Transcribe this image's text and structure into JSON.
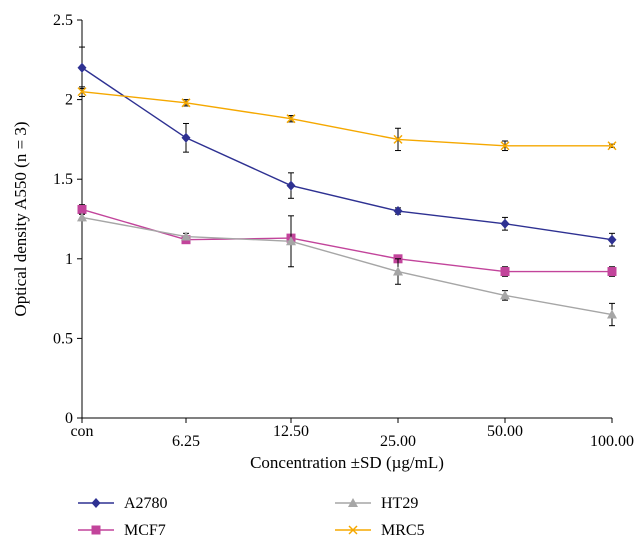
{
  "chart_data": {
    "type": "line",
    "title": "",
    "xlabel": "Concentration ±SD (µg/mL)",
    "ylabel": "Optical density A550 (n = 3)",
    "categories": [
      "con",
      "6.25",
      "12.50",
      "25.00",
      "50.00",
      "100.00"
    ],
    "ylim": [
      0,
      2.5
    ],
    "yticks": [
      0,
      0.5,
      1,
      1.5,
      2,
      2.5
    ],
    "ytick_labels": [
      "0",
      "0.5",
      "1",
      "1.5",
      "2",
      "2.5"
    ],
    "grid": false,
    "legend_position": "bottom",
    "error_bars": true,
    "series": [
      {
        "name": "A2780",
        "color": "#2e3192",
        "marker": "diamond",
        "values": [
          2.2,
          1.76,
          1.46,
          1.3,
          1.22,
          1.12
        ],
        "errors": [
          0.13,
          0.09,
          0.08,
          0.02,
          0.04,
          0.04
        ]
      },
      {
        "name": "MCF7",
        "color": "#c2449b",
        "marker": "square",
        "values": [
          1.31,
          1.12,
          1.13,
          1.0,
          0.92,
          0.92
        ],
        "errors": [
          0.03,
          0.02,
          0.02,
          0.02,
          0.03,
          0.03
        ]
      },
      {
        "name": "HT29",
        "color": "#a6a6a6",
        "marker": "triangle",
        "values": [
          1.26,
          1.14,
          1.11,
          0.92,
          0.77,
          0.65
        ],
        "errors": [
          0.02,
          0.02,
          0.16,
          0.08,
          0.03,
          0.07
        ]
      },
      {
        "name": "MRC5",
        "color": "#f5a800",
        "marker": "x",
        "values": [
          2.05,
          1.98,
          1.88,
          1.75,
          1.71,
          1.71
        ],
        "errors": [
          0.03,
          0.02,
          0.02,
          0.07,
          0.03,
          0.01
        ]
      }
    ]
  }
}
